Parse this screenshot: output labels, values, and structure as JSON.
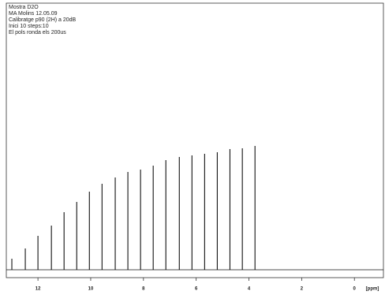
{
  "chart_data": {
    "type": "stick",
    "annotations": [
      "Mostra D2O",
      "MA Molins 12.05.09",
      "Calibratge p90 (2H) a 20dB",
      "Inici 10 steps:10",
      "El pols ronda els 200us"
    ],
    "x_label": "[ppm]",
    "x": [
      12.99,
      12.48,
      12.0,
      11.49,
      11.01,
      10.53,
      10.05,
      9.57,
      9.07,
      8.59,
      8.11,
      7.63,
      7.15,
      6.64,
      6.16,
      5.68,
      5.2,
      4.72,
      4.25,
      3.77
    ],
    "values": [
      14,
      27,
      43,
      56,
      73,
      86,
      99,
      109,
      117,
      124,
      127,
      132,
      139,
      143,
      145,
      147,
      149,
      153,
      154,
      157
    ],
    "color": "#111111",
    "xlim": [
      13.2,
      -1.1
    ],
    "xticks": [
      12,
      10,
      8,
      6,
      4,
      2,
      0
    ],
    "ylim": [
      -10,
      337
    ]
  }
}
